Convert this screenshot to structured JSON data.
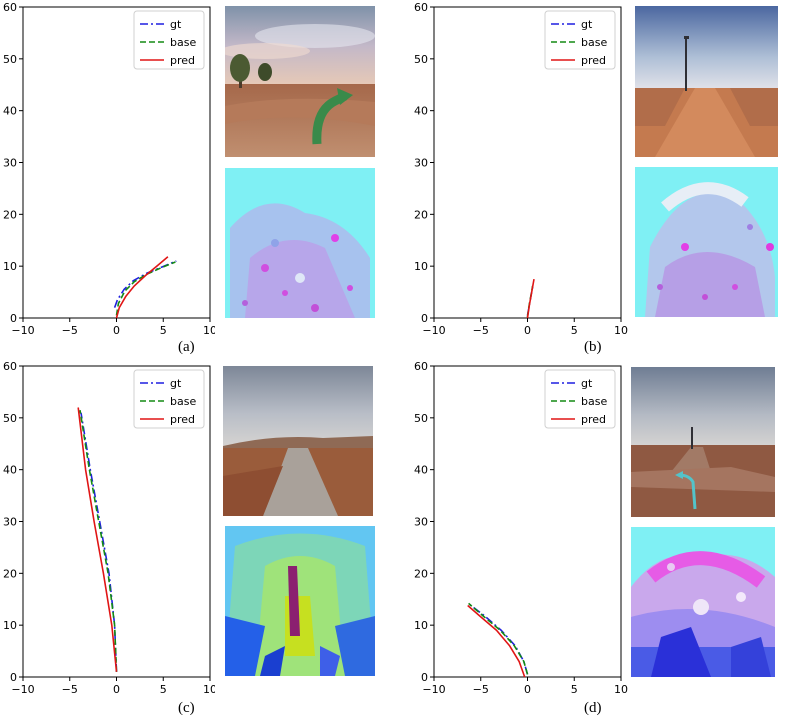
{
  "legend": [
    "gt",
    "base",
    "pred"
  ],
  "colors": {
    "gt": "#1f1fe0",
    "base": "#138a13",
    "pred": "#e01515",
    "cyan": "#7ff0f4"
  },
  "panels": [
    {
      "caption": "(a)",
      "chart_data": {
        "type": "line",
        "xlim": [
          -10,
          10
        ],
        "ylim": [
          0,
          60
        ],
        "xticks": [
          -10,
          -5,
          0,
          5,
          10
        ],
        "yticks": [
          0,
          10,
          20,
          30,
          40,
          50,
          60
        ],
        "legend_position": "top-right",
        "series": [
          {
            "name": "gt",
            "x": [
              -0.2,
              0.1,
              0.8,
              1.8,
              3.2,
              4.8,
              6.4
            ],
            "y": [
              2.0,
              3.5,
              5.5,
              7.2,
              8.6,
              9.8,
              11.0
            ]
          },
          {
            "name": "base",
            "x": [
              0.0,
              0.2,
              0.9,
              1.9,
              3.3,
              4.8,
              6.3
            ],
            "y": [
              0.5,
              2.8,
              5.2,
              7.0,
              8.5,
              9.7,
              10.8
            ]
          },
          {
            "name": "pred",
            "x": [
              0.0,
              0.3,
              1.0,
              1.9,
              3.1,
              4.3,
              5.5
            ],
            "y": [
              0.0,
              2.0,
              4.2,
              6.2,
              8.2,
              10.0,
              11.8
            ]
          }
        ]
      }
    },
    {
      "caption": "(b)",
      "chart_data": {
        "type": "line",
        "xlim": [
          -10,
          10
        ],
        "ylim": [
          0,
          60
        ],
        "xticks": [
          -10,
          -5,
          0,
          5,
          10
        ],
        "yticks": [
          0,
          10,
          20,
          30,
          40,
          50,
          60
        ],
        "legend_position": "top-right",
        "series": [
          {
            "name": "gt",
            "x": [
              0.0,
              0.2,
              0.4,
              0.6
            ],
            "y": [
              0.5,
              2.5,
              4.5,
              6.5
            ]
          },
          {
            "name": "base",
            "x": [
              0.0,
              0.15,
              0.35,
              0.55
            ],
            "y": [
              0.2,
              2.2,
              4.2,
              6.2
            ]
          },
          {
            "name": "pred",
            "x": [
              0.0,
              0.2,
              0.45,
              0.7
            ],
            "y": [
              0.0,
              2.5,
              5.0,
              7.5
            ]
          }
        ]
      }
    },
    {
      "caption": "(c)",
      "chart_data": {
        "type": "line",
        "xlim": [
          -10,
          10
        ],
        "ylim": [
          0,
          60
        ],
        "xticks": [
          -10,
          -5,
          0,
          5,
          10
        ],
        "yticks": [
          0,
          10,
          20,
          30,
          40,
          50,
          60
        ],
        "legend_position": "top-right",
        "series": [
          {
            "name": "gt",
            "x": [
              0.0,
              -0.2,
              -0.8,
              -1.8,
              -2.8,
              -3.8
            ],
            "y": [
              1.0,
              10.0,
              20.0,
              30.0,
              40.0,
              51.0
            ]
          },
          {
            "name": "base",
            "x": [
              0.0,
              -0.2,
              -0.9,
              -1.9,
              -2.9,
              -3.9
            ],
            "y": [
              1.0,
              10.0,
              20.0,
              30.0,
              40.0,
              51.5
            ]
          },
          {
            "name": "pred",
            "x": [
              0.0,
              -0.5,
              -1.4,
              -2.4,
              -3.3,
              -4.1
            ],
            "y": [
              1.0,
              10.0,
              20.0,
              30.0,
              40.0,
              52.0
            ]
          }
        ]
      }
    },
    {
      "caption": "(d)",
      "chart_data": {
        "type": "line",
        "xlim": [
          -10,
          10
        ],
        "ylim": [
          0,
          60
        ],
        "xticks": [
          -10,
          -5,
          0,
          5,
          10
        ],
        "yticks": [
          0,
          10,
          20,
          30,
          40,
          50,
          60
        ],
        "legend_position": "top-right",
        "series": [
          {
            "name": "gt",
            "x": [
              0.0,
              -0.4,
              -1.3,
              -2.8,
              -4.6,
              -6.2
            ],
            "y": [
              0.5,
              3.0,
              6.0,
              9.0,
              11.8,
              14.0
            ]
          },
          {
            "name": "base",
            "x": [
              0.0,
              -0.4,
              -1.4,
              -2.9,
              -4.7,
              -6.3
            ],
            "y": [
              0.5,
              3.0,
              6.0,
              9.0,
              11.7,
              14.2
            ]
          },
          {
            "name": "pred",
            "x": [
              -0.3,
              -0.9,
              -1.9,
              -3.3,
              -5.0,
              -6.4
            ],
            "y": [
              0.0,
              3.0,
              6.0,
              9.0,
              11.6,
              13.8
            ]
          }
        ]
      }
    }
  ]
}
